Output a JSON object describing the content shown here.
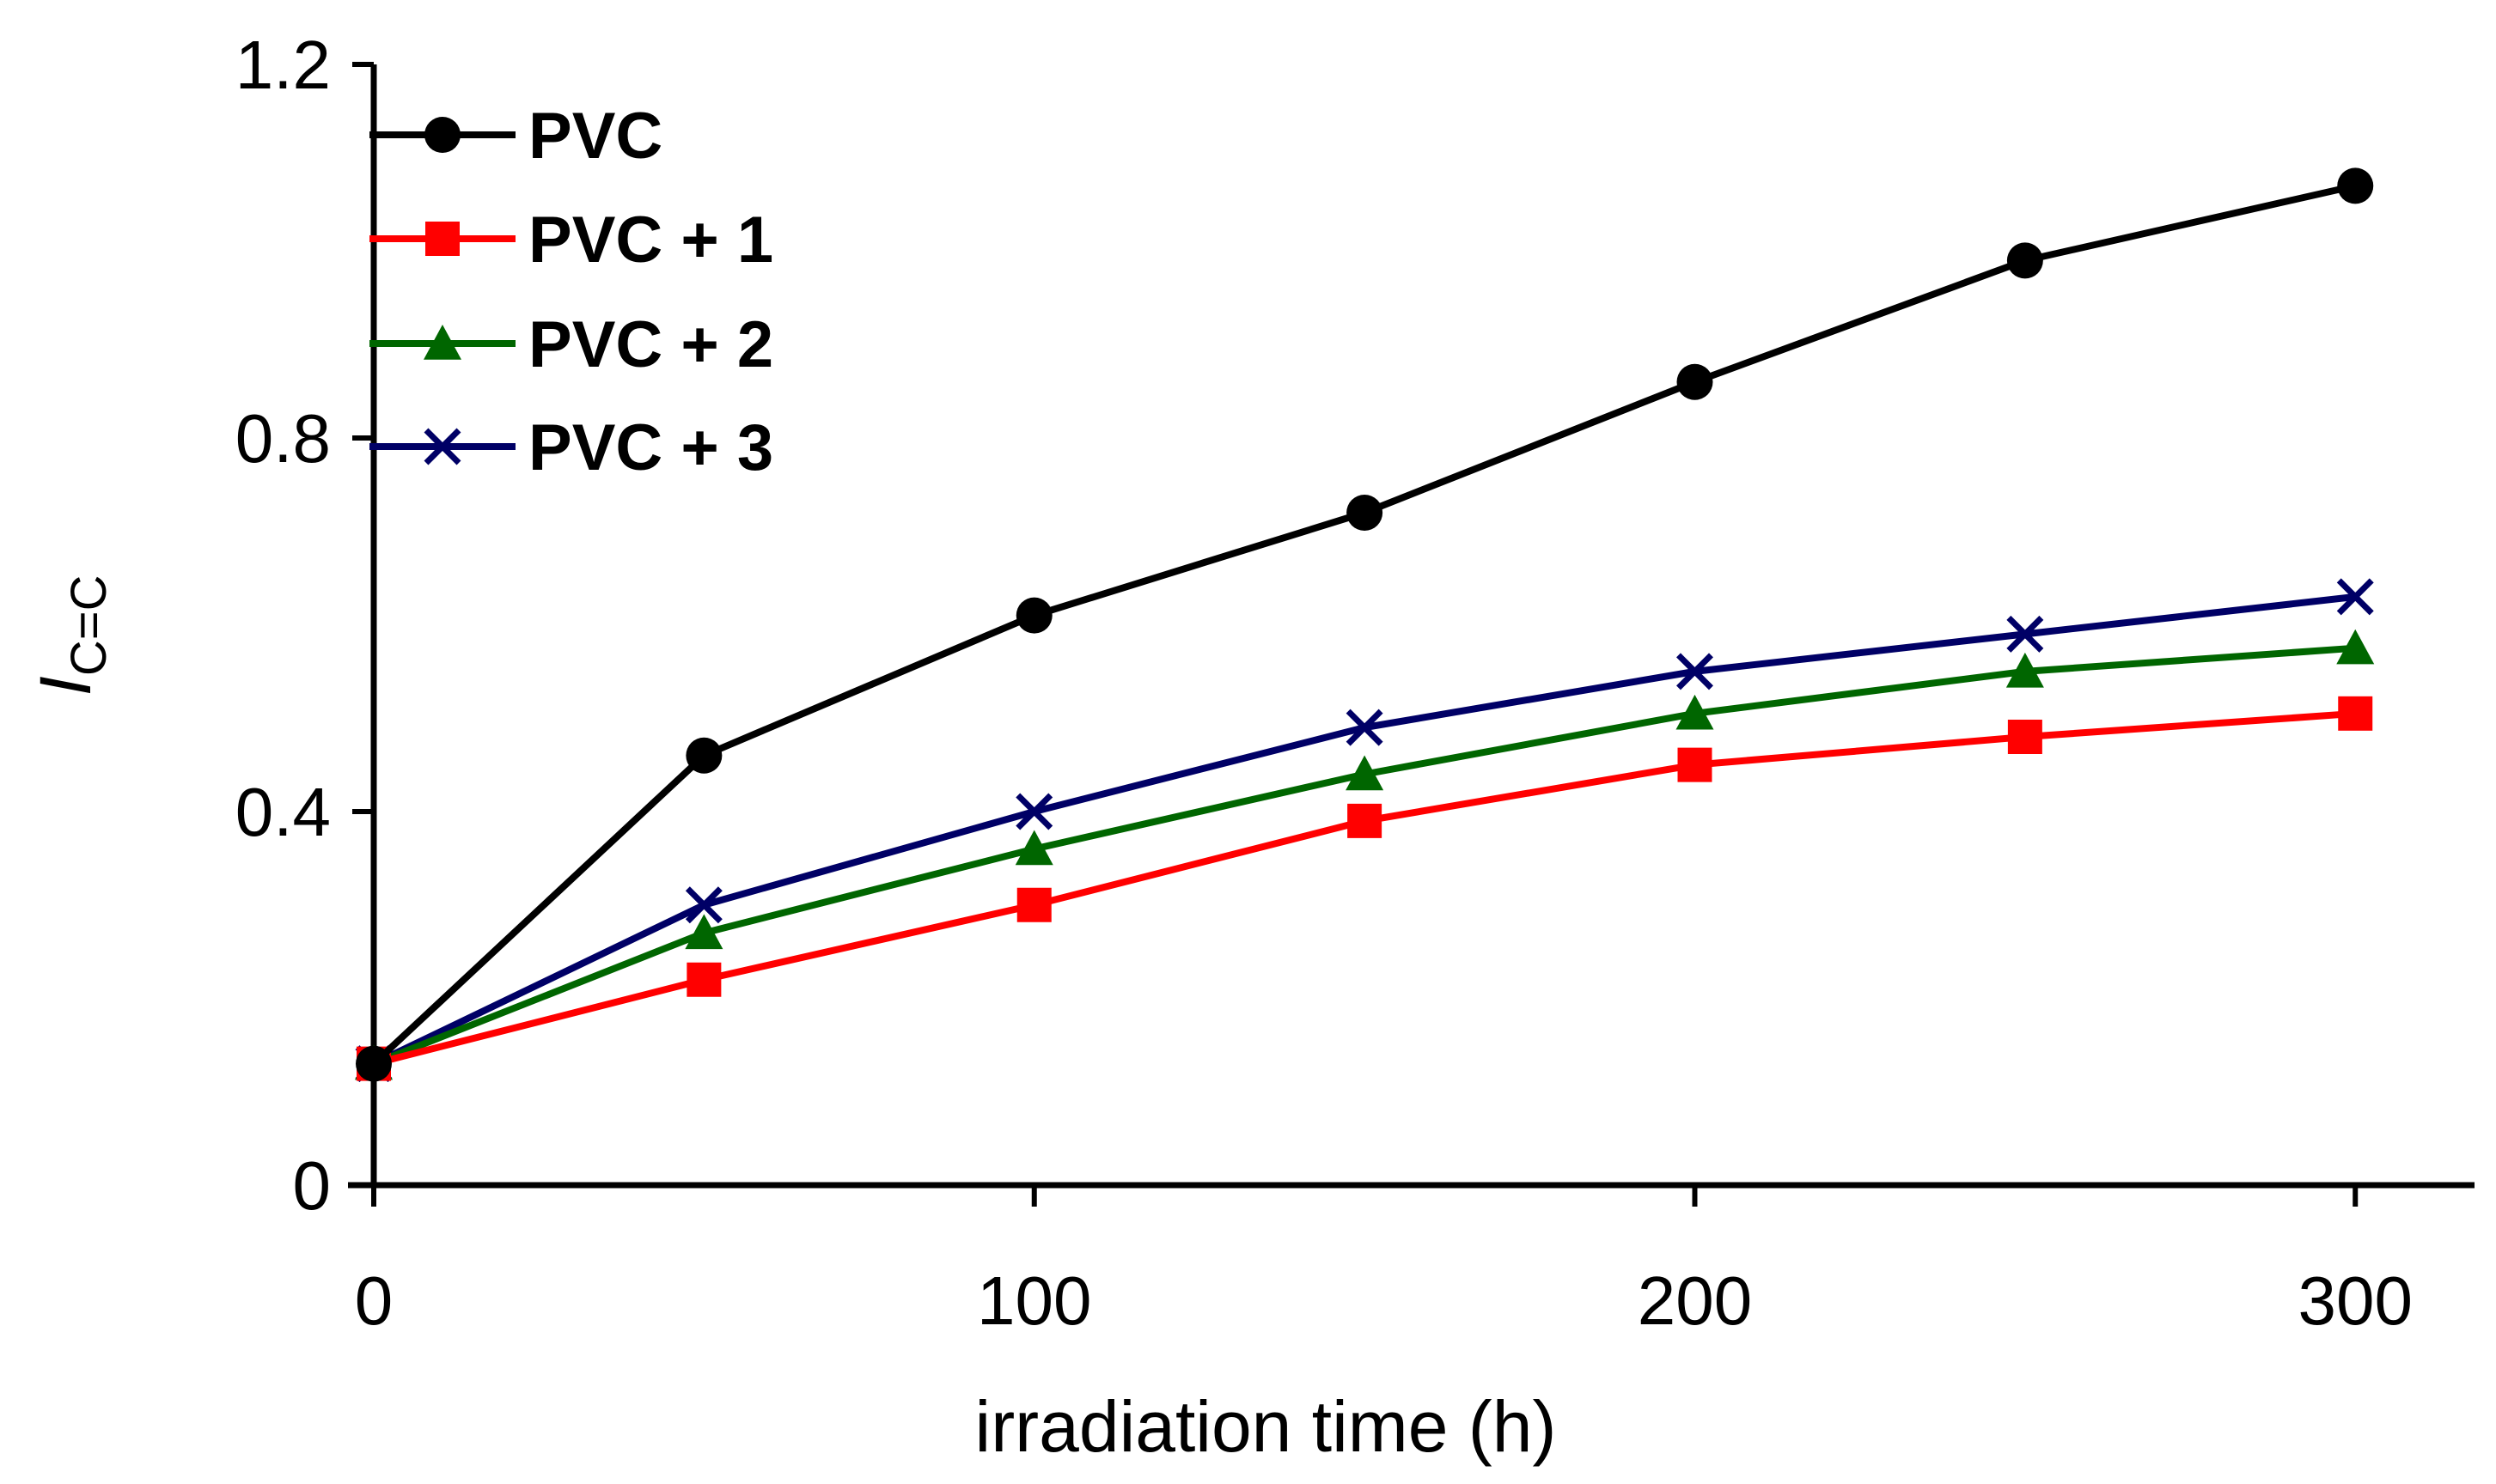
{
  "chart_data": {
    "type": "line",
    "title": "",
    "xlabel": "irradiation time (h)",
    "ylabel": {
      "main": "I",
      "subscript": "C=C"
    },
    "xlim": [
      0,
      320
    ],
    "ylim": [
      0,
      1.2
    ],
    "xticks": [
      0,
      100,
      200,
      300
    ],
    "yticks": [
      0,
      0.4,
      0.8,
      1.2
    ],
    "ytick_labels": [
      "0",
      "0.4",
      "0.8",
      "1.2"
    ],
    "x": [
      0,
      50,
      100,
      150,
      200,
      250,
      300
    ],
    "legend_position": "top-left",
    "grid": false,
    "series": [
      {
        "name": "PVC",
        "color": "#000000",
        "marker": "circle",
        "values": [
          0.13,
          0.46,
          0.61,
          0.72,
          0.86,
          0.99,
          1.07
        ]
      },
      {
        "name": "PVC + 1",
        "color": "#ff0000",
        "marker": "square",
        "values": [
          0.13,
          0.22,
          0.3,
          0.39,
          0.45,
          0.48,
          0.505
        ]
      },
      {
        "name": "PVC + 2",
        "color": "#006600",
        "marker": "triangle",
        "values": [
          0.13,
          0.27,
          0.36,
          0.44,
          0.505,
          0.55,
          0.575
        ]
      },
      {
        "name": "PVC + 3",
        "color": "#000066",
        "marker": "x",
        "values": [
          0.13,
          0.3,
          0.4,
          0.49,
          0.55,
          0.59,
          0.63
        ]
      }
    ]
  }
}
